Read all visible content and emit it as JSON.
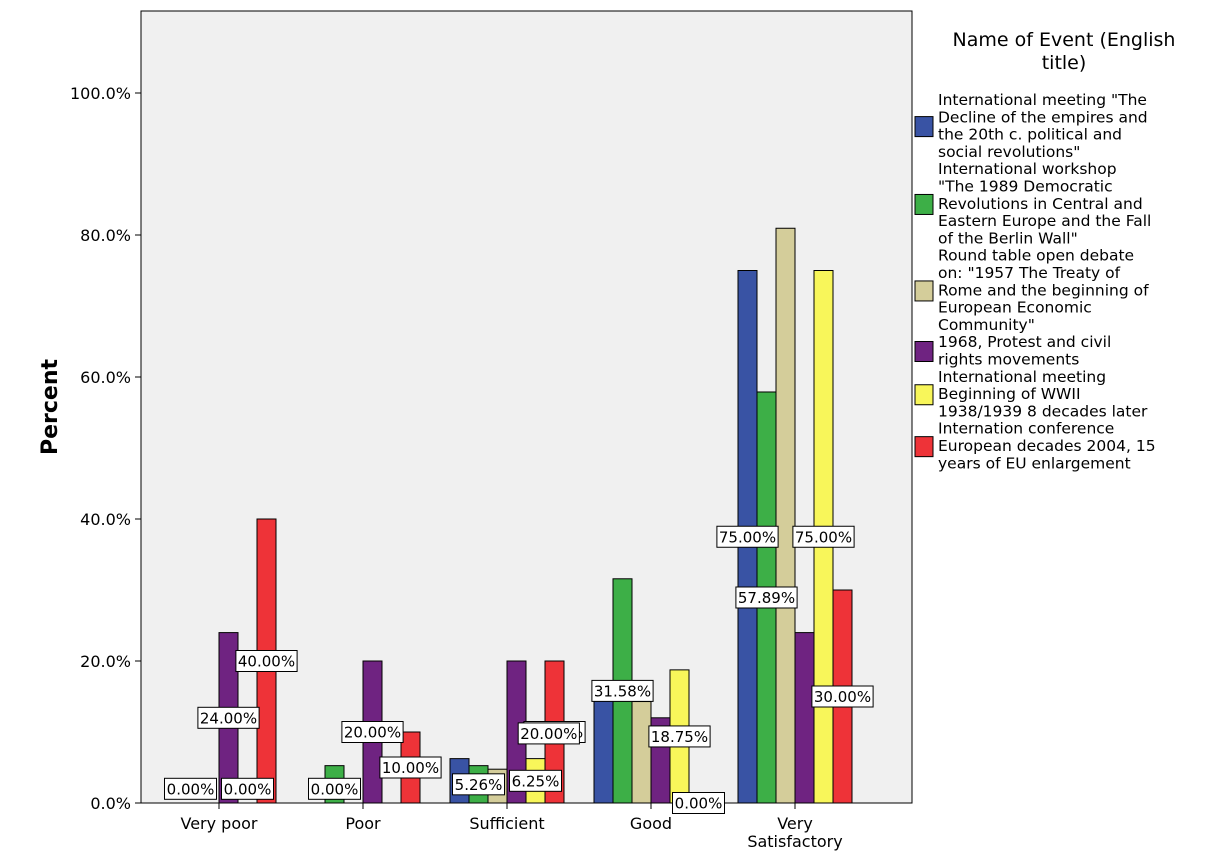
{
  "chart_data": {
    "type": "bar",
    "ylabel": "Percent",
    "xlabel": "",
    "ylim": [
      0,
      100
    ],
    "y_ticks": [
      0,
      20,
      40,
      60,
      80,
      100
    ],
    "y_tick_labels": [
      "0.0%",
      "20.0%",
      "40.0%",
      "60.0%",
      "80.0%",
      "100.0%"
    ],
    "y_max_view": 111,
    "categories": [
      "Very poor",
      "Poor",
      "Sufficient",
      "Good",
      "Very Satisfactory"
    ],
    "category_lines": [
      [
        "Very poor"
      ],
      [
        "Poor"
      ],
      [
        "Sufficient"
      ],
      [
        "Good"
      ],
      [
        "Very",
        "Satisfactory"
      ]
    ],
    "legend": {
      "title_lines": [
        "Name of Event (English",
        "title)"
      ],
      "placement": "right"
    },
    "series": [
      {
        "name": "International meeting \"The Decline of the empires and the 20th c. political and social revolutions\"",
        "legend_lines": [
          "International meeting \"The",
          "Decline of the empires and",
          "the 20th c. political and",
          "social revolutions\""
        ],
        "color": "#3953a4",
        "values": [
          0,
          0,
          6.25,
          15,
          75
        ],
        "labels": [
          null,
          null,
          null,
          null,
          "75.00%"
        ]
      },
      {
        "name": "International workshop \"The 1989 Democratic Revolutions in Central and Eastern Europe and the Fall of the Berlin Wall\"",
        "legend_lines": [
          "International workshop",
          "\"The 1989 Democratic",
          "Revolutions in Central and",
          "Eastern Europe and the Fall",
          "of the Berlin Wall\""
        ],
        "color": "#3daf47",
        "values": [
          0,
          5.26,
          5.26,
          31.58,
          57.89
        ],
        "labels": [
          null,
          null,
          "5.26%",
          "31.58%",
          "57.89%"
        ]
      },
      {
        "name": "Round table open debate on: \"1957 The Treaty of Rome and the beginning of European Economic Community\"",
        "legend_lines": [
          "Round table open debate",
          "on: \"1957 The Treaty of",
          "Rome and the beginning of",
          "European Economic",
          "Community\""
        ],
        "color": "#d4cd9a",
        "values": [
          0,
          0,
          4.76,
          14.29,
          80.95
        ],
        "labels": [
          null,
          null,
          null,
          null,
          null
        ]
      },
      {
        "name": "1968, Protest and civil rights movements",
        "legend_lines": [
          "1968, Protest and civil",
          "rights movements"
        ],
        "color": "#6f2381",
        "values": [
          24,
          20,
          20,
          12,
          24
        ],
        "labels": [
          "24.00%",
          "20.00%",
          null,
          null,
          null
        ]
      },
      {
        "name": "International meeting Beginning of WWII 1938/1939 8 decades later",
        "legend_lines": [
          "International meeting",
          "Beginning of WWII",
          "1938/1939 8 decades later"
        ],
        "color": "#f8f65a",
        "values": [
          0,
          0,
          6.25,
          18.75,
          75
        ],
        "labels": [
          null,
          null,
          "6.25%",
          "18.75%",
          "75.00%"
        ]
      },
      {
        "name": "Internation conference European decades 2004, 15 years of EU enlargement",
        "legend_lines": [
          "Internation conference",
          "European decades 2004, 15",
          "years of EU enlargement"
        ],
        "color": "#ee3338",
        "values": [
          40,
          10,
          20,
          0,
          30
        ],
        "labels": [
          "40.00%",
          "10.00%",
          "20.00%",
          "0.00%",
          "30.00%"
        ]
      }
    ],
    "extra_labels": [
      {
        "text": "0.00%",
        "category": 0,
        "series": 1.5,
        "y": 2
      },
      {
        "text": "0.00%",
        "category": 0,
        "series": 4.5,
        "y": 2
      },
      {
        "text": "0.00%",
        "category": 1,
        "series": 1.5,
        "y": 2
      },
      {
        "text": "20.00%",
        "category": 2,
        "series": 5.2,
        "y": 9.8
      }
    ]
  }
}
